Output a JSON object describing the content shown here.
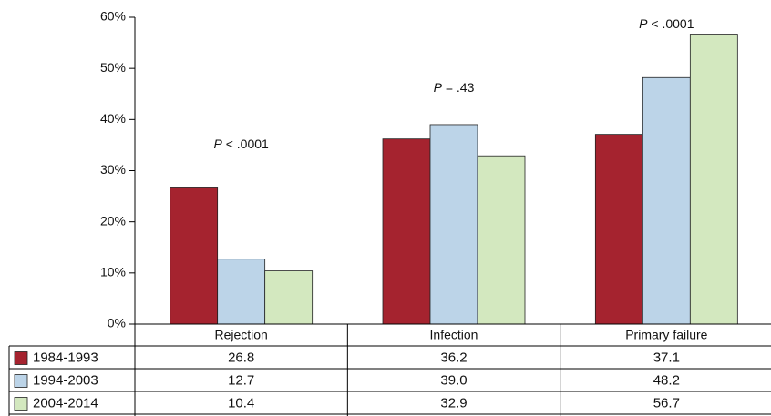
{
  "chart_data": {
    "type": "bar",
    "categories": [
      "Rejection",
      "Infection",
      "Primary failure"
    ],
    "series": [
      {
        "name": "1984-1993",
        "color": "#a5232f",
        "values": [
          26.8,
          36.2,
          37.1
        ],
        "value_labels": [
          "26.8",
          "36.2",
          "37.1"
        ]
      },
      {
        "name": "1994-2003",
        "color": "#bcd4e8",
        "values": [
          12.7,
          39.0,
          48.2
        ],
        "value_labels": [
          "12.7",
          "39.0",
          "48.2"
        ]
      },
      {
        "name": "2004-2014",
        "color": "#d3e8bf",
        "values": [
          10.4,
          32.9,
          56.7
        ],
        "value_labels": [
          "10.4",
          "32.9",
          "56.7"
        ]
      }
    ],
    "annotations": [
      "P < .0001",
      "P = .43",
      "P < .0001"
    ],
    "ylim": [
      0,
      60
    ],
    "yticks": [
      {
        "value": 0,
        "label": "0%"
      },
      {
        "value": 10,
        "label": "10%"
      },
      {
        "value": 20,
        "label": "20%"
      },
      {
        "value": 30,
        "label": "30%"
      },
      {
        "value": 40,
        "label": "40%"
      },
      {
        "value": 50,
        "label": "50%"
      },
      {
        "value": 60,
        "label": "60%"
      }
    ],
    "grid": false,
    "legend": "table"
  }
}
